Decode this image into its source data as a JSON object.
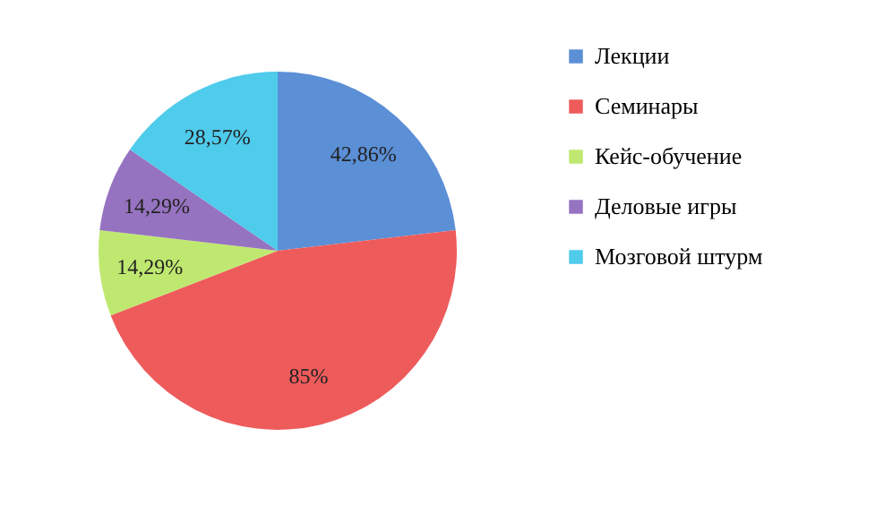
{
  "chart_data": {
    "type": "pie",
    "categories": [
      "Лекции",
      "Семинары",
      "Кейс-обучение",
      "Деловые игры",
      "Мозговой штурм"
    ],
    "values": [
      42.86,
      85,
      14.29,
      14.29,
      28.57
    ],
    "colors": [
      "#5b8fd6",
      "#ee5b5b",
      "#bfe870",
      "#9673c0",
      "#4fcbec"
    ],
    "value_labels": [
      "42,86%",
      "85%",
      "14,29%",
      "14,29%",
      "28,57%"
    ],
    "legend": "right"
  }
}
